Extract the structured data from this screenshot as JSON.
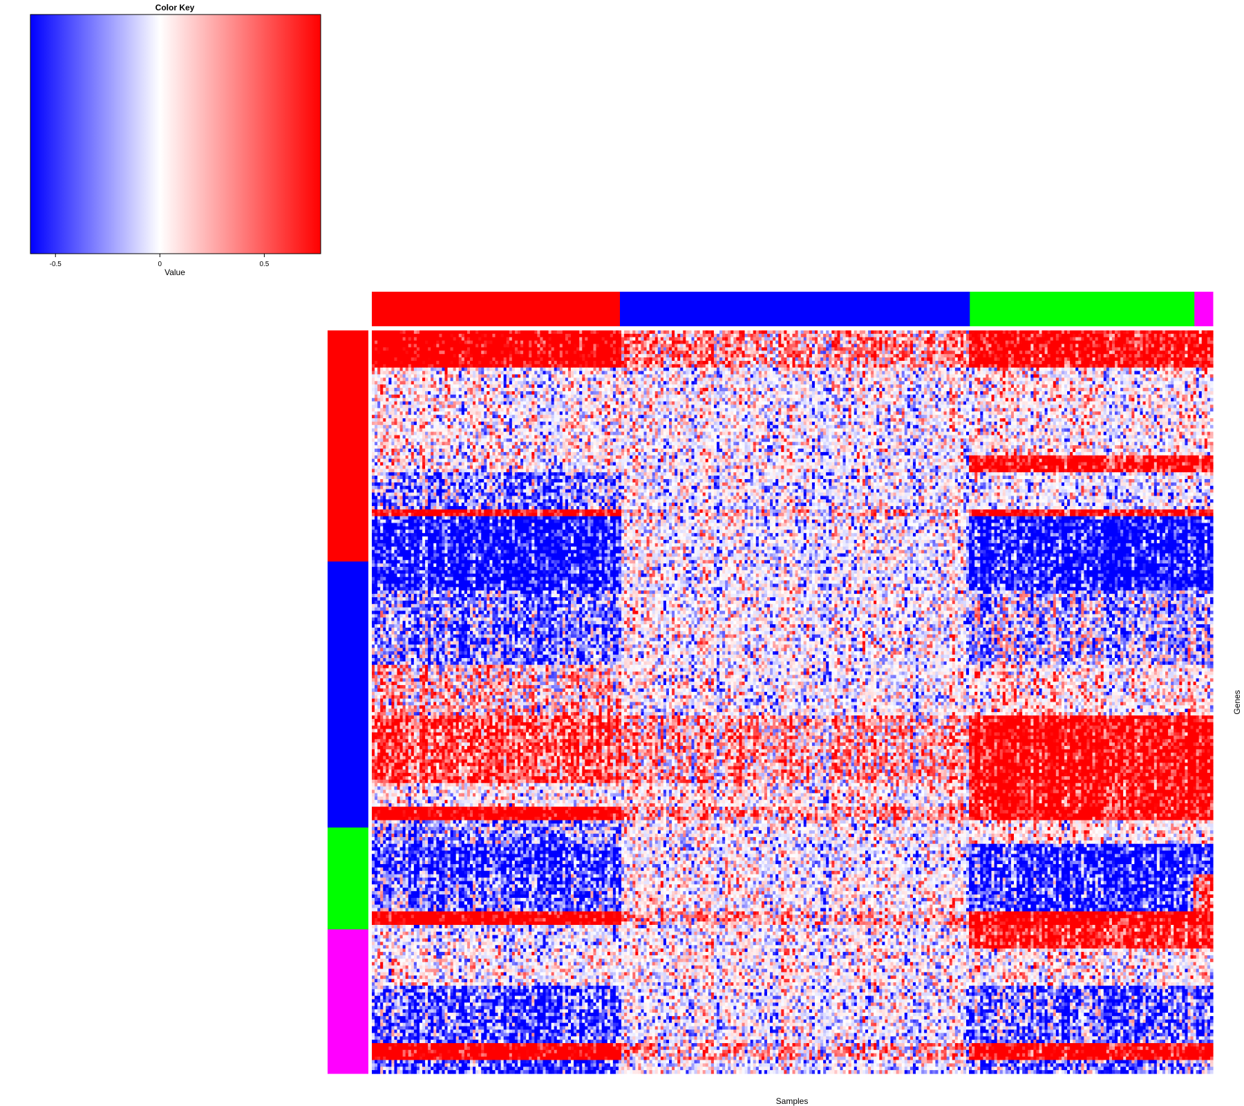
{
  "chart_data": {
    "type": "heatmap",
    "color_key": {
      "title": "Color Key",
      "xlabel": "Value",
      "range": [
        -0.62,
        0.77
      ],
      "ticks": [
        -0.5,
        0,
        0.5
      ],
      "tick_labels": [
        "-0.5",
        "0",
        "0.5"
      ],
      "colors": {
        "low": "#0000ff",
        "mid": "#ffffff",
        "high": "#ff0000"
      }
    },
    "xlabel": "Samples",
    "ylabel": "Genes",
    "column_groups": [
      {
        "color": "#ff0000",
        "fraction": 0.295
      },
      {
        "color": "#0000ff",
        "fraction": 0.416
      },
      {
        "color": "#00ff00",
        "fraction": 0.267
      },
      {
        "color": "#ff00ff",
        "fraction": 0.022
      }
    ],
    "row_groups": [
      {
        "color": "#ff0000",
        "fraction": 0.311
      },
      {
        "color": "#0000ff",
        "fraction": 0.358
      },
      {
        "color": "#00ff00",
        "fraction": 0.137
      },
      {
        "color": "#ff00ff",
        "fraction": 0.194
      }
    ],
    "n_samples": 300,
    "n_genes": 220,
    "heatmap_bands": [
      {
        "start": 0.0,
        "end": 0.05,
        "values": [
          0.85,
          0.25,
          0.7,
          0.65
        ]
      },
      {
        "start": 0.05,
        "end": 0.17,
        "values": [
          0.05,
          0.0,
          0.05,
          0.05
        ]
      },
      {
        "start": 0.17,
        "end": 0.19,
        "values": [
          0.05,
          0.0,
          0.7,
          0.6
        ]
      },
      {
        "start": 0.19,
        "end": 0.24,
        "values": [
          -0.25,
          -0.05,
          -0.1,
          -0.1
        ]
      },
      {
        "start": 0.24,
        "end": 0.25,
        "values": [
          0.75,
          0.15,
          0.7,
          0.7
        ]
      },
      {
        "start": 0.25,
        "end": 0.35,
        "values": [
          -0.55,
          -0.05,
          -0.55,
          -0.55
        ]
      },
      {
        "start": 0.35,
        "end": 0.45,
        "values": [
          -0.25,
          0.0,
          -0.15,
          -0.15
        ]
      },
      {
        "start": 0.45,
        "end": 0.52,
        "values": [
          0.15,
          0.0,
          0.1,
          0.1
        ]
      },
      {
        "start": 0.52,
        "end": 0.61,
        "values": [
          0.45,
          0.2,
          0.7,
          0.7
        ]
      },
      {
        "start": 0.61,
        "end": 0.64,
        "values": [
          0.05,
          0.1,
          0.65,
          0.65
        ]
      },
      {
        "start": 0.64,
        "end": 0.66,
        "values": [
          0.85,
          0.2,
          0.7,
          0.7
        ]
      },
      {
        "start": 0.66,
        "end": 0.69,
        "values": [
          -0.2,
          0.0,
          0.1,
          0.1
        ]
      },
      {
        "start": 0.69,
        "end": 0.73,
        "values": [
          -0.45,
          -0.05,
          -0.5,
          -0.5
        ]
      },
      {
        "start": 0.73,
        "end": 0.78,
        "values": [
          -0.3,
          0.05,
          -0.45,
          0.4
        ]
      },
      {
        "start": 0.78,
        "end": 0.8,
        "values": [
          0.85,
          0.2,
          0.75,
          0.8
        ]
      },
      {
        "start": 0.8,
        "end": 0.83,
        "values": [
          -0.1,
          0.0,
          0.6,
          0.6
        ]
      },
      {
        "start": 0.83,
        "end": 0.88,
        "values": [
          0.05,
          0.05,
          0.05,
          0.05
        ]
      },
      {
        "start": 0.88,
        "end": 0.96,
        "values": [
          -0.35,
          -0.05,
          -0.3,
          -0.3
        ]
      },
      {
        "start": 0.96,
        "end": 0.98,
        "values": [
          0.85,
          0.15,
          0.75,
          0.75
        ]
      },
      {
        "start": 0.98,
        "end": 1.0,
        "values": [
          -0.4,
          -0.05,
          -0.3,
          -0.3
        ]
      }
    ]
  }
}
